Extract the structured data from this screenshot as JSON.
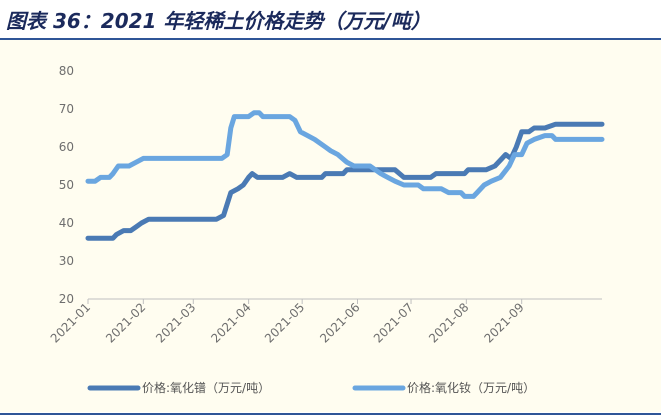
{
  "title": "图表 36：2021 年轻稀土价格走势（万元/吨）",
  "colors": {
    "series_dark": "#4a7ab4",
    "series_light": "#6aa6e0",
    "axis": "#bfbfbf",
    "background": "#fffdf0",
    "title_rule": "#2f5597"
  },
  "chart_data": {
    "type": "line",
    "title": "",
    "xlabel": "",
    "ylabel": "",
    "ylim": [
      20,
      80
    ],
    "yticks": [
      20,
      30,
      40,
      50,
      60,
      70,
      80
    ],
    "x_ticks": [
      "2021-01",
      "2021-02",
      "2021-03",
      "2021-04",
      "2021-05",
      "2021-06",
      "2021-07",
      "2021-08",
      "2021-09"
    ],
    "grid": false,
    "legend_position": "bottom",
    "series": [
      {
        "name": "价格:氧化镨（万元/吨）",
        "points": [
          [
            "2021-01-01",
            36
          ],
          [
            "2021-01-15",
            36
          ],
          [
            "2021-01-17",
            37
          ],
          [
            "2021-01-21",
            38
          ],
          [
            "2021-01-25",
            38
          ],
          [
            "2021-01-28",
            39
          ],
          [
            "2021-01-31",
            40
          ],
          [
            "2021-02-04",
            41
          ],
          [
            "2021-02-10",
            41
          ],
          [
            "2021-02-24",
            41
          ],
          [
            "2021-02-28",
            41
          ],
          [
            "2021-03-10",
            41
          ],
          [
            "2021-03-14",
            41
          ],
          [
            "2021-03-18",
            42
          ],
          [
            "2021-03-20",
            45
          ],
          [
            "2021-03-22",
            48
          ],
          [
            "2021-03-26",
            49
          ],
          [
            "2021-03-29",
            50
          ],
          [
            "2021-04-01",
            52
          ],
          [
            "2021-04-03",
            53
          ],
          [
            "2021-04-06",
            52
          ],
          [
            "2021-04-12",
            52
          ],
          [
            "2021-04-20",
            52
          ],
          [
            "2021-04-24",
            53
          ],
          [
            "2021-04-28",
            52
          ],
          [
            "2021-05-06",
            52
          ],
          [
            "2021-05-12",
            52
          ],
          [
            "2021-05-14",
            53
          ],
          [
            "2021-05-24",
            53
          ],
          [
            "2021-05-26",
            54
          ],
          [
            "2021-06-01",
            54
          ],
          [
            "2021-06-10",
            54
          ],
          [
            "2021-06-18",
            54
          ],
          [
            "2021-06-22",
            54
          ],
          [
            "2021-06-27",
            52
          ],
          [
            "2021-07-05",
            52
          ],
          [
            "2021-07-12",
            52
          ],
          [
            "2021-07-15",
            53
          ],
          [
            "2021-07-31",
            53
          ],
          [
            "2021-08-02",
            54
          ],
          [
            "2021-08-12",
            54
          ],
          [
            "2021-08-17",
            55
          ],
          [
            "2021-08-21",
            57
          ],
          [
            "2021-08-23",
            58
          ],
          [
            "2021-08-26",
            57
          ],
          [
            "2021-08-29",
            60
          ],
          [
            "2021-09-01",
            64
          ],
          [
            "2021-09-05",
            64
          ],
          [
            "2021-09-08",
            65
          ],
          [
            "2021-09-14",
            65
          ],
          [
            "2021-09-20",
            66
          ],
          [
            "2021-10-06",
            66
          ],
          [
            "2021-10-16",
            66
          ]
        ]
      },
      {
        "name": "价格:氧化钕（万元/吨）",
        "points": [
          [
            "2021-01-01",
            51
          ],
          [
            "2021-01-05",
            51
          ],
          [
            "2021-01-08",
            52
          ],
          [
            "2021-01-13",
            52
          ],
          [
            "2021-01-15",
            53
          ],
          [
            "2021-01-18",
            55
          ],
          [
            "2021-01-24",
            55
          ],
          [
            "2021-01-28",
            56
          ],
          [
            "2021-02-01",
            57
          ],
          [
            "2021-02-10",
            57
          ],
          [
            "2021-02-28",
            57
          ],
          [
            "2021-03-10",
            57
          ],
          [
            "2021-03-17",
            57
          ],
          [
            "2021-03-20",
            58
          ],
          [
            "2021-03-22",
            65
          ],
          [
            "2021-03-24",
            68
          ],
          [
            "2021-04-01",
            68
          ],
          [
            "2021-04-04",
            69
          ],
          [
            "2021-04-07",
            69
          ],
          [
            "2021-04-09",
            68
          ],
          [
            "2021-04-15",
            68
          ],
          [
            "2021-04-20",
            68
          ],
          [
            "2021-04-24",
            68
          ],
          [
            "2021-04-27",
            67
          ],
          [
            "2021-04-30",
            64
          ],
          [
            "2021-05-04",
            63
          ],
          [
            "2021-05-08",
            62
          ],
          [
            "2021-05-14",
            60
          ],
          [
            "2021-05-17",
            59
          ],
          [
            "2021-05-21",
            58
          ],
          [
            "2021-05-26",
            56
          ],
          [
            "2021-05-30",
            55
          ],
          [
            "2021-06-08",
            55
          ],
          [
            "2021-06-14",
            53
          ],
          [
            "2021-06-18",
            52
          ],
          [
            "2021-06-22",
            51
          ],
          [
            "2021-06-27",
            50
          ],
          [
            "2021-07-05",
            50
          ],
          [
            "2021-07-08",
            49
          ],
          [
            "2021-07-12",
            49
          ],
          [
            "2021-07-18",
            49
          ],
          [
            "2021-07-22",
            48
          ],
          [
            "2021-07-29",
            48
          ],
          [
            "2021-07-31",
            47
          ],
          [
            "2021-08-05",
            47
          ],
          [
            "2021-08-07",
            48
          ],
          [
            "2021-08-11",
            50
          ],
          [
            "2021-08-15",
            51
          ],
          [
            "2021-08-20",
            52
          ],
          [
            "2021-08-25",
            55
          ],
          [
            "2021-08-28",
            58
          ],
          [
            "2021-09-01",
            58
          ],
          [
            "2021-09-04",
            61
          ],
          [
            "2021-09-08",
            62
          ],
          [
            "2021-09-14",
            63
          ],
          [
            "2021-09-18",
            63
          ],
          [
            "2021-09-20",
            62
          ],
          [
            "2021-09-24",
            62
          ],
          [
            "2021-10-01",
            62
          ],
          [
            "2021-10-14",
            62
          ],
          [
            "2021-10-16",
            62
          ]
        ]
      }
    ]
  }
}
